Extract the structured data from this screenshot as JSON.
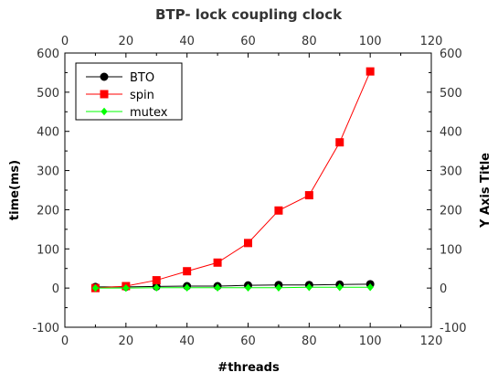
{
  "chart_data": {
    "type": "line",
    "title": "BTP- lock coupling clock",
    "xlabel": "#threads",
    "ylabel": "time(ms)",
    "y2label": "Y Axis Title",
    "xlim": [
      0,
      120
    ],
    "ylim": [
      -100,
      600
    ],
    "xticks": [
      0,
      20,
      40,
      60,
      80,
      100,
      120
    ],
    "yticks": [
      -100,
      0,
      100,
      200,
      300,
      400,
      500,
      600
    ],
    "grid": false,
    "legend_position": "top-left",
    "x": [
      10,
      20,
      30,
      40,
      50,
      60,
      70,
      80,
      90,
      100
    ],
    "series": [
      {
        "name": "BTO",
        "color": "#000000",
        "marker": "circle",
        "values": [
          3,
          3,
          4,
          5,
          5,
          7,
          8,
          8,
          9,
          10
        ]
      },
      {
        "name": "spin",
        "color": "#ff0000",
        "marker": "square",
        "values": [
          0,
          5,
          20,
          43,
          65,
          115,
          198,
          237,
          372,
          553
        ]
      },
      {
        "name": "mutex",
        "color": "#00ff00",
        "marker": "diamond",
        "values": [
          0,
          0,
          1,
          1,
          1,
          1,
          1,
          2,
          2,
          2
        ]
      }
    ]
  }
}
